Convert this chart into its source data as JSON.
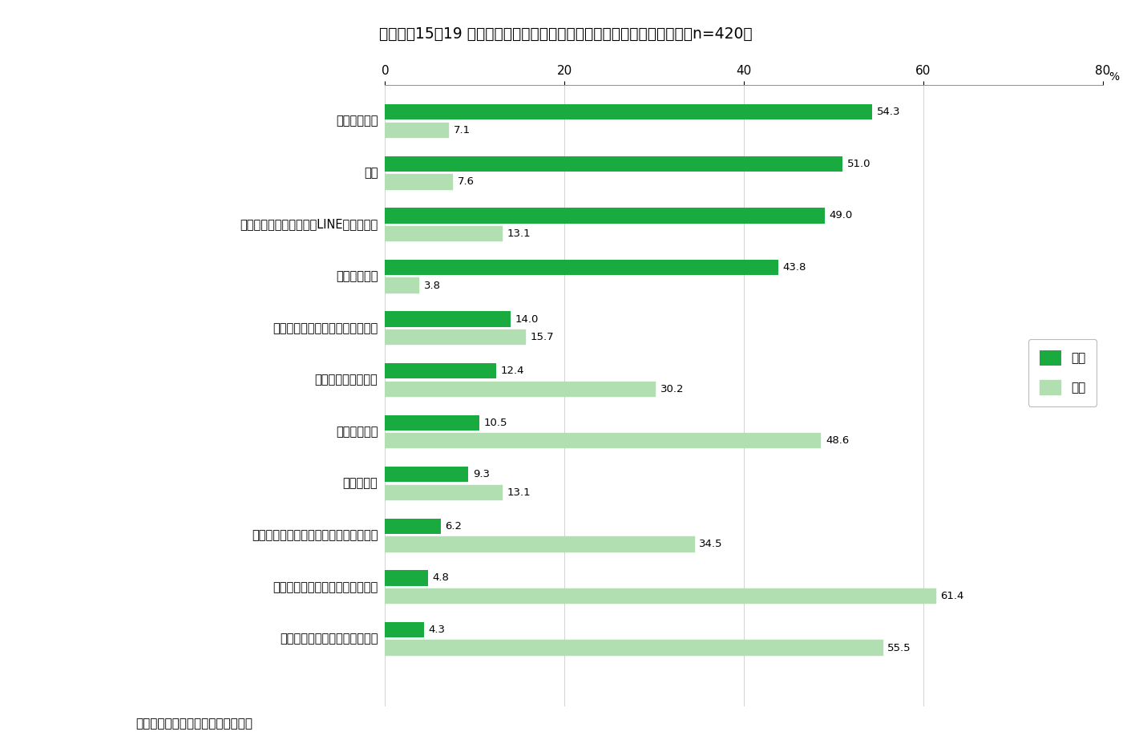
{
  "title": "図表６　15〜19 歳の生活行動で増えたもの・減ったもの（複数選択）（n=420）",
  "note": "（注）　上から増えたもので多い順",
  "categories": [
    "自宅での勉強",
    "睡眠",
    "友人との交流（メールやLINE、電話等）",
    "家族と過ごす",
    "趣味や習い事（オンライン含む）",
    "運動（部活等以外）",
    "学校での勉強",
    "アルバイト",
    "部活やサークル活動（オンライン含む）",
    "友人との交流（会う、出かける）",
    "外出（アルバイトや通学以外）"
  ],
  "increase": [
    54.3,
    51.0,
    49.0,
    43.8,
    14.0,
    12.4,
    10.5,
    9.3,
    6.2,
    4.8,
    4.3
  ],
  "decrease": [
    7.1,
    7.6,
    13.1,
    3.8,
    15.7,
    30.2,
    48.6,
    13.1,
    34.5,
    61.4,
    55.5
  ],
  "increase_color": "#1aab40",
  "decrease_color": "#b2dfb2",
  "increase_label": "増加",
  "decrease_label": "減少",
  "xlim": [
    0,
    80
  ],
  "xticks": [
    0,
    20,
    40,
    60,
    80
  ],
  "xlabel_percent": "%",
  "bar_height": 0.3,
  "bar_gap": 0.05,
  "background_color": "#ffffff"
}
